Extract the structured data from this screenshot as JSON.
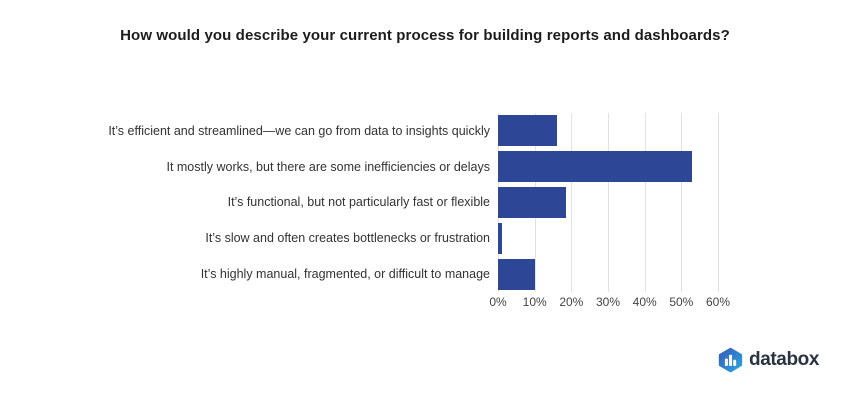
{
  "chart_data": {
    "type": "bar",
    "orientation": "horizontal",
    "title": "How would you describe your current process for building reports and dashboards?",
    "categories": [
      "It’s efficient and streamlined—we can go from data to insights quickly",
      "It mostly works, but there are some inefficiencies or delays",
      "It’s functional, but not particularly fast or flexible",
      "It’s slow and often creates bottlenecks or frustration",
      "It’s highly manual, fragmented, or difficult to manage"
    ],
    "values": [
      16,
      53,
      18.5,
      1,
      10
    ],
    "unit": "%",
    "xlabel": "",
    "ylabel": "",
    "xlim": [
      0,
      60
    ],
    "x_tick_values": [
      0,
      10,
      20,
      30,
      40,
      50,
      60
    ],
    "x_tick_labels": [
      "0%",
      "10%",
      "20%",
      "30%",
      "40%",
      "50%",
      "60%"
    ],
    "grid": true,
    "legend": "none",
    "bar_color": "#2e4696",
    "gridline_color": "#e2e2e2",
    "label_color": "#333333",
    "tick_color": "#444444",
    "title_color": "#1c1c1c"
  },
  "branding": {
    "logo_text": "databox",
    "logo_icon": "databox-hexagon-chart-icon",
    "logo_text_color": "#2b3340",
    "logo_gradient_start": "#3a57b9",
    "logo_gradient_end": "#27aae1"
  }
}
